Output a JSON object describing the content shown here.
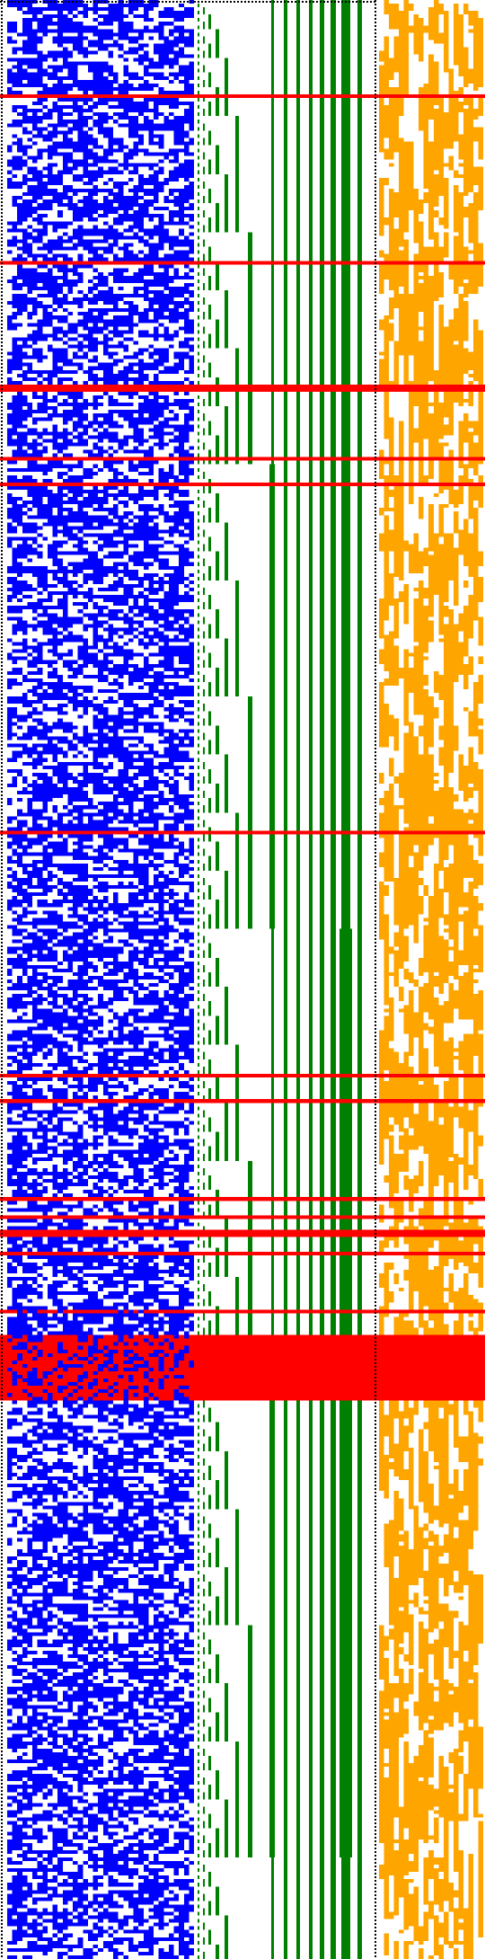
{
  "colors": {
    "background": "#ffffff",
    "bit_on": "#0000ff",
    "index_mark": "#008000",
    "flag_mark": "#ffa500",
    "highlight_row": "#ff0000",
    "border_dots": "#000000"
  },
  "visualization": {
    "kind": "binary-matrix",
    "rows": 540,
    "panels": [
      {
        "name": "bit-matrix",
        "columns": 37,
        "color": "#0000ff",
        "density": 0.5
      },
      {
        "name": "index-staircase",
        "levels": 9,
        "color": "#008000"
      },
      {
        "name": "flag-matrix",
        "columns": 21,
        "color": "#ffa500",
        "density": 0.42
      }
    ],
    "highlight_rows": [
      26,
      72,
      106,
      107,
      126,
      133,
      229,
      296,
      303,
      330,
      335,
      339,
      340,
      345,
      361,
      368,
      369,
      370,
      371,
      372,
      373,
      374,
      375,
      376,
      377,
      378,
      379,
      380,
      381,
      382,
      383,
      384,
      385
    ],
    "border": "dotted"
  }
}
